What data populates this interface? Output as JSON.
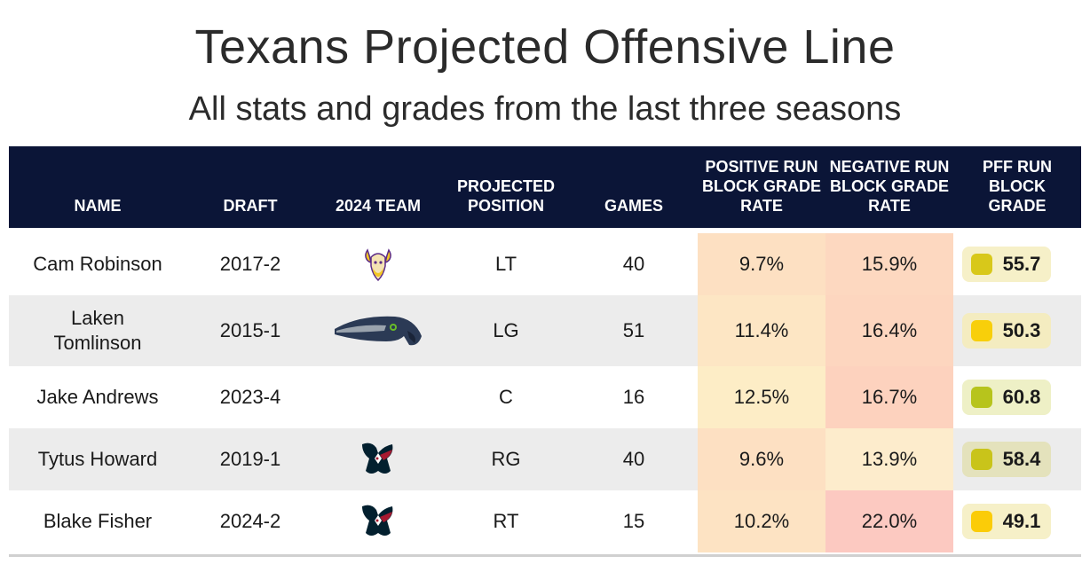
{
  "title": "Texans Projected Offensive Line",
  "subtitle": "All stats and grades from the last three seasons",
  "columns": {
    "name": "NAME",
    "draft": "DRAFT",
    "team": "2024 TEAM",
    "position": "PROJECTED POSITION",
    "games": "GAMES",
    "pos_rate": "POSITIVE RUN BLOCK GRADE RATE",
    "neg_rate": "NEGATIVE RUN BLOCK GRADE RATE",
    "grade": "PFF RUN BLOCK GRADE"
  },
  "chart_data": {
    "type": "table",
    "title": "Texans Projected Offensive Line",
    "subtitle": "All stats and grades from the last three seasons",
    "rows": [
      {
        "name": "Cam Robinson",
        "draft": "2017-2",
        "team_icon": "vikings-logo-icon",
        "position": "LT",
        "games": "40",
        "pos_rate": "9.7%",
        "neg_rate": "15.9%",
        "grade": "55.7",
        "pos_color": "#fde0c2",
        "neg_color": "#fdd8c0",
        "box_color": "#f6f0c8",
        "dot_color": "#d8c81a"
      },
      {
        "name": "Laken Tomlinson",
        "draft": "2015-1",
        "team_icon": "seahawks-logo-icon",
        "position": "LG",
        "games": "51",
        "pos_rate": "11.4%",
        "neg_rate": "16.4%",
        "grade": "50.3",
        "pos_color": "#fde6c4",
        "neg_color": "#fdd6bf",
        "box_color": "#f4ecc0",
        "dot_color": "#f8cf0a"
      },
      {
        "name": "Jake Andrews",
        "draft": "2023-4",
        "team_icon": "",
        "position": "C",
        "games": "16",
        "pos_rate": "12.5%",
        "neg_rate": "16.7%",
        "grade": "60.8",
        "pos_color": "#fdedc6",
        "neg_color": "#fdd2be",
        "box_color": "#eef0c6",
        "dot_color": "#b7c41c"
      },
      {
        "name": "Tytus Howard",
        "draft": "2019-1",
        "team_icon": "texans-logo-icon",
        "position": "RG",
        "games": "40",
        "pos_rate": "9.6%",
        "neg_rate": "13.9%",
        "grade": "58.4",
        "pos_color": "#fde0c2",
        "neg_color": "#fdeccc",
        "box_color": "#e4e2bc",
        "dot_color": "#c9c41a"
      },
      {
        "name": "Blake Fisher",
        "draft": "2024-2",
        "team_icon": "texans-logo-icon",
        "position": "RT",
        "games": "15",
        "pos_rate": "10.2%",
        "neg_rate": "22.0%",
        "grade": "49.1",
        "pos_color": "#fde3c3",
        "neg_color": "#fcc9c1",
        "box_color": "#f6f0c8",
        "dot_color": "#fbcc08"
      }
    ]
  }
}
